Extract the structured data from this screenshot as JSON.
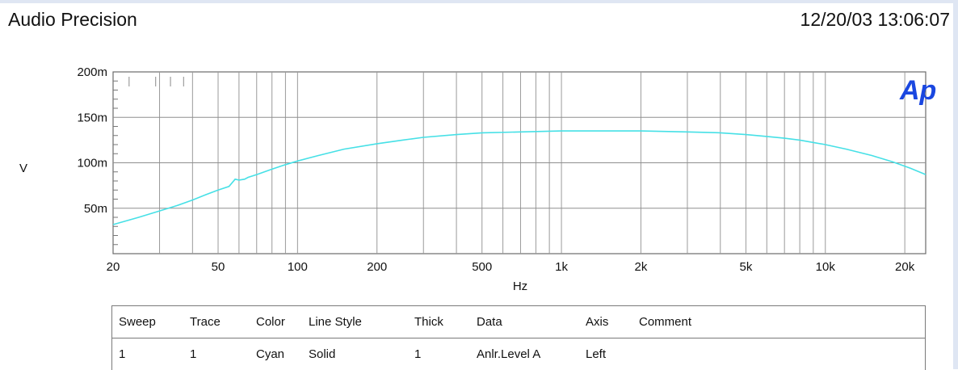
{
  "header": {
    "app_title": "Audio Precision",
    "timestamp": "12/20/03 13:06:07"
  },
  "logo_text": "Ap",
  "chart_data": {
    "type": "line",
    "xlabel": "Hz",
    "ylabel": "V",
    "x_scale": "log",
    "xlim": [
      20,
      24000
    ],
    "ylim": [
      0,
      200
    ],
    "grid": true,
    "x_ticks": [
      {
        "value": 20,
        "label": "20"
      },
      {
        "value": 50,
        "label": "50"
      },
      {
        "value": 100,
        "label": "100"
      },
      {
        "value": 200,
        "label": "200"
      },
      {
        "value": 500,
        "label": "500"
      },
      {
        "value": 1000,
        "label": "1k"
      },
      {
        "value": 2000,
        "label": "2k"
      },
      {
        "value": 5000,
        "label": "5k"
      },
      {
        "value": 10000,
        "label": "10k"
      },
      {
        "value": 20000,
        "label": "20k"
      }
    ],
    "y_ticks": [
      {
        "value": 50,
        "label": "50m"
      },
      {
        "value": 100,
        "label": "100m"
      },
      {
        "value": 150,
        "label": "150m"
      },
      {
        "value": 200,
        "label": "200m"
      }
    ],
    "line_color": "#46e0e6",
    "series": [
      {
        "x": [
          20,
          25,
          30,
          35,
          40,
          45,
          50,
          55,
          58,
          60,
          63,
          65,
          70,
          80,
          90,
          100,
          120,
          150,
          200,
          250,
          300,
          400,
          500,
          700,
          1000,
          1500,
          2000,
          3000,
          4000,
          5000,
          6000,
          7000,
          8000,
          10000,
          12000,
          15000,
          18000,
          21000,
          24000
        ],
        "y": [
          32,
          40,
          47,
          53,
          59,
          65,
          70,
          74,
          82,
          81,
          82,
          84,
          87,
          93,
          98,
          102,
          108,
          115,
          121,
          125,
          128,
          131,
          133,
          134,
          135,
          135,
          135,
          134,
          133,
          131,
          129,
          127,
          125,
          120,
          115,
          108,
          101,
          94,
          87
        ]
      }
    ]
  },
  "legend_table": {
    "columns": [
      "Sweep",
      "Trace",
      "Color",
      "Line Style",
      "Thick",
      "Data",
      "Axis",
      "Comment"
    ],
    "rows": [
      [
        "1",
        "1",
        "Cyan",
        "Solid",
        "1",
        "Anlr.Level A",
        "Left",
        ""
      ]
    ]
  }
}
